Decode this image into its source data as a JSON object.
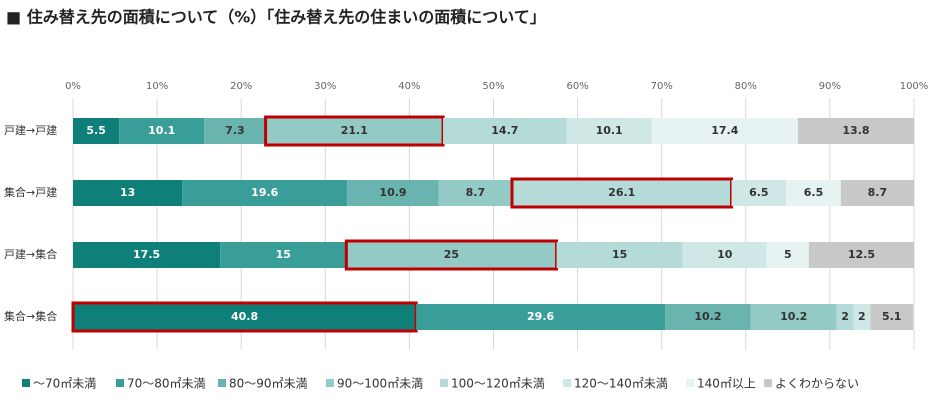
{
  "chart_data": {
    "type": "stacked-bar-horizontal",
    "title": "■ 住み替え先の面積について（%）「住み替え先の住まいの面積について」",
    "categories": [
      "戸建→戸建",
      "集合→戸建",
      "戸建→集合",
      "集合→集合"
    ],
    "series": [
      {
        "name": "〜70㎡未満",
        "color": "#0f7f7a",
        "values": [
          5.5,
          13.0,
          17.5,
          40.8
        ]
      },
      {
        "name": "70〜80㎡未満",
        "color": "#3a9e98",
        "values": [
          10.1,
          19.6,
          15.0,
          29.6
        ]
      },
      {
        "name": "80〜90㎡未満",
        "color": "#6ab4af",
        "values": [
          7.3,
          10.9,
          0,
          10.2
        ]
      },
      {
        "name": "90〜100㎡未満",
        "color": "#93cac6",
        "values": [
          21.1,
          8.7,
          25.0,
          10.2
        ]
      },
      {
        "name": "100〜120㎡未満",
        "color": "#b4dbd8",
        "values": [
          14.7,
          26.1,
          15.0,
          2.0
        ]
      },
      {
        "name": "120〜140㎡未満",
        "color": "#cfe8e6",
        "values": [
          10.1,
          6.5,
          10.0,
          2.0
        ]
      },
      {
        "name": "140㎡以上",
        "color": "#e6f3f2",
        "values": [
          17.4,
          6.5,
          5.0,
          0
        ]
      },
      {
        "name": "よくわからない",
        "color": "#c8c8c8",
        "values": [
          13.8,
          8.7,
          12.5,
          5.1
        ]
      }
    ],
    "xlim": [
      0,
      100
    ],
    "xticks": [
      {
        "value": 0,
        "label": "0%"
      },
      {
        "value": 10,
        "label": "10%"
      },
      {
        "value": 20,
        "label": "20%"
      },
      {
        "value": 30,
        "label": "30%"
      },
      {
        "value": 40,
        "label": "40%"
      },
      {
        "value": 50,
        "label": "50%"
      },
      {
        "value": 60,
        "label": "60%"
      },
      {
        "value": 70,
        "label": "70%"
      },
      {
        "value": 80,
        "label": "80%"
      },
      {
        "value": 90,
        "label": "90%"
      },
      {
        "value": 100,
        "label": "100%"
      }
    ],
    "grid": true,
    "highlight_color": "#c00000",
    "highlight_series": [
      3,
      4,
      3,
      0
    ],
    "legend": "bottom"
  }
}
